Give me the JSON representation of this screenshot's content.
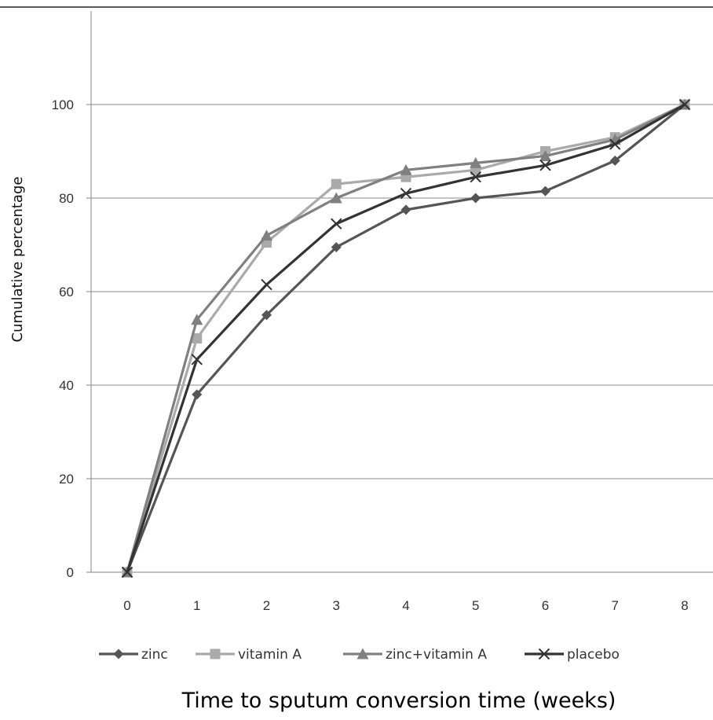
{
  "chart_data": {
    "type": "line",
    "x": [
      0,
      1,
      2,
      3,
      4,
      5,
      6,
      7,
      8
    ],
    "xlabel": "Time to sputum conversion time (weeks)",
    "ylabel": "Cumulative percentage",
    "ylim": [
      0,
      120
    ],
    "yticks": [
      0,
      20,
      40,
      60,
      80,
      100
    ],
    "xtick_labels": [
      "0",
      "1",
      "2",
      "3",
      "4",
      "5",
      "6",
      "7",
      "8"
    ],
    "ytick_labels": [
      "0",
      "20",
      "40",
      "60",
      "80",
      "100"
    ],
    "grid": "horizontal",
    "legend_position": "bottom",
    "series": [
      {
        "name": "zinc",
        "marker": "diamond",
        "color": "#555555",
        "values": [
          0,
          38,
          55,
          69.5,
          77.5,
          80,
          81.5,
          88,
          100
        ]
      },
      {
        "name": "vitamin A",
        "marker": "square",
        "color": "#aaaaaa",
        "values": [
          0,
          50,
          70.5,
          83,
          84.5,
          86,
          90,
          93,
          100
        ]
      },
      {
        "name": "zinc+vitamin A",
        "marker": "triangle",
        "color": "#808080",
        "values": [
          0,
          54,
          72,
          80,
          86,
          87.5,
          89,
          92.5,
          100
        ]
      },
      {
        "name": "placebo",
        "marker": "x",
        "color": "#333333",
        "values": [
          0,
          45.5,
          61.5,
          74.5,
          81,
          84.5,
          87,
          91.5,
          100
        ]
      }
    ]
  }
}
